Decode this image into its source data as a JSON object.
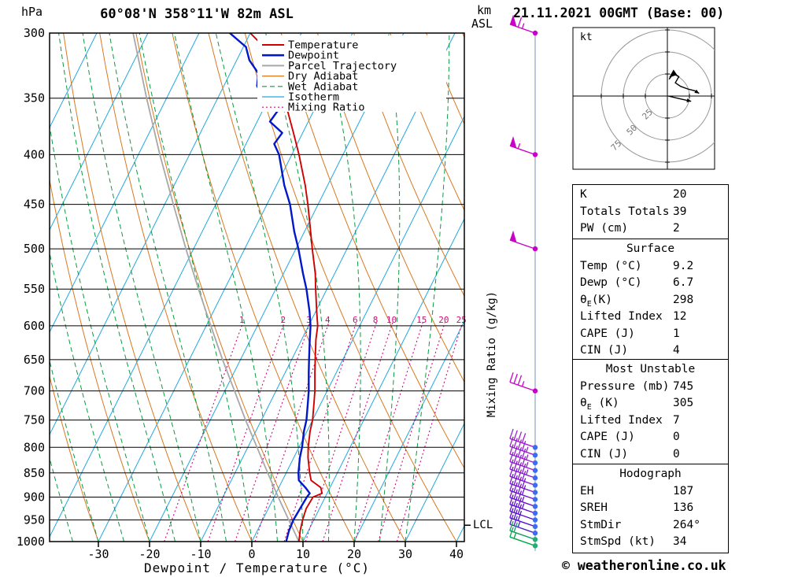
{
  "header": {
    "title": "60°08'N 358°11'W 82m ASL",
    "datetime": "21.11.2021 00GMT (Base: 00)"
  },
  "axes": {
    "pressure_unit": "hPa",
    "km_asl": [
      "km",
      "ASL"
    ],
    "x_title": "Dewpoint / Temperature (°C)",
    "mixing_ratio_label": "Mixing Ratio (g/kg)",
    "pressure_ticks": [
      300,
      350,
      400,
      450,
      500,
      550,
      600,
      650,
      700,
      750,
      800,
      850,
      900,
      950,
      1000
    ],
    "temp_ticks": [
      -30,
      -20,
      -10,
      0,
      10,
      20,
      30,
      40
    ]
  },
  "legend": {
    "items": [
      {
        "label": "Temperature",
        "color": "#d00000",
        "style": "solid",
        "width": 2
      },
      {
        "label": "Dewpoint",
        "color": "#0018c8",
        "style": "solid",
        "width": 2.6
      },
      {
        "label": "Parcel Trajectory",
        "color": "#a8a8a8",
        "style": "solid",
        "width": 2
      },
      {
        "label": "Dry Adiabat",
        "color": "#d97820",
        "style": "solid",
        "width": 1.2
      },
      {
        "label": "Wet Adiabat",
        "color": "#0a9a40",
        "style": "dashed",
        "width": 1.2
      },
      {
        "label": "Isotherm",
        "color": "#22a8e0",
        "style": "solid",
        "width": 1.2
      },
      {
        "label": "Mixing Ratio",
        "color": "#cf0a78",
        "style": "dotted",
        "width": 1.2
      }
    ]
  },
  "chart_data": {
    "sounding": {
      "type": "skewt_log_p",
      "pressure_axis_hpa": [
        300,
        1000
      ],
      "temp_axis_c": [
        -40,
        40
      ],
      "lcl_label": "LCL",
      "lcl_pressure_hpa": 962,
      "mixing_ratio_lines": [
        1,
        2,
        3,
        4,
        6,
        8,
        10,
        15,
        20,
        25
      ],
      "temperature_profile": [
        [
          1000,
          9.2
        ],
        [
          975,
          8.4
        ],
        [
          950,
          7.8
        ],
        [
          925,
          7.4
        ],
        [
          900,
          7.6
        ],
        [
          892,
          9.0
        ],
        [
          880,
          8.2
        ],
        [
          865,
          5.6
        ],
        [
          850,
          4.6
        ],
        [
          820,
          2.8
        ],
        [
          800,
          1.8
        ],
        [
          770,
          0.6
        ],
        [
          750,
          0.0
        ],
        [
          720,
          -1.4
        ],
        [
          700,
          -2.4
        ],
        [
          670,
          -4.2
        ],
        [
          650,
          -5.4
        ],
        [
          620,
          -7.2
        ],
        [
          600,
          -8.2
        ],
        [
          580,
          -9.8
        ],
        [
          550,
          -12.2
        ],
        [
          530,
          -13.8
        ],
        [
          500,
          -16.8
        ],
        [
          480,
          -18.8
        ],
        [
          450,
          -22.0
        ],
        [
          430,
          -24.4
        ],
        [
          400,
          -28.6
        ],
        [
          380,
          -31.8
        ],
        [
          350,
          -37.0
        ],
        [
          330,
          -40.6
        ],
        [
          315,
          -44.0
        ],
        [
          300,
          -50.0
        ]
      ],
      "dewpoint_profile": [
        [
          1000,
          6.7
        ],
        [
          975,
          6.2
        ],
        [
          950,
          6.0
        ],
        [
          925,
          6.2
        ],
        [
          900,
          6.4
        ],
        [
          892,
          6.6
        ],
        [
          880,
          5.2
        ],
        [
          865,
          3.2
        ],
        [
          850,
          2.4
        ],
        [
          820,
          1.2
        ],
        [
          800,
          0.6
        ],
        [
          770,
          -0.6
        ],
        [
          750,
          -1.2
        ],
        [
          720,
          -2.6
        ],
        [
          700,
          -3.6
        ],
        [
          670,
          -5.4
        ],
        [
          650,
          -6.6
        ],
        [
          620,
          -8.4
        ],
        [
          600,
          -9.6
        ],
        [
          580,
          -11.2
        ],
        [
          550,
          -14.0
        ],
        [
          530,
          -16.2
        ],
        [
          500,
          -19.5
        ],
        [
          480,
          -22.0
        ],
        [
          450,
          -25.5
        ],
        [
          430,
          -28.5
        ],
        [
          400,
          -32.5
        ],
        [
          390,
          -34.5
        ],
        [
          380,
          -34.0
        ],
        [
          370,
          -37.5
        ],
        [
          360,
          -37.0
        ],
        [
          350,
          -41.0
        ],
        [
          340,
          -43.5
        ],
        [
          330,
          -44.5
        ],
        [
          320,
          -47.5
        ],
        [
          310,
          -49.5
        ],
        [
          300,
          -54.0
        ]
      ],
      "parcel_profile": [
        [
          1000,
          9.2
        ],
        [
          950,
          5.1
        ],
        [
          900,
          0.8
        ],
        [
          850,
          -3.6
        ],
        [
          800,
          -8.2
        ],
        [
          750,
          -13.1
        ],
        [
          700,
          -18.1
        ],
        [
          650,
          -23.5
        ],
        [
          600,
          -29.1
        ],
        [
          550,
          -35.1
        ],
        [
          500,
          -41.5
        ],
        [
          450,
          -48.3
        ],
        [
          400,
          -55.8
        ],
        [
          350,
          -63.9
        ],
        [
          300,
          -72.9
        ]
      ],
      "winds": [
        {
          "p": 300,
          "spd": 65,
          "color": "#c800c8",
          "dot": "#c800c8"
        },
        {
          "p": 400,
          "spd": 55,
          "color": "#c800c8",
          "dot": "#c800c8"
        },
        {
          "p": 500,
          "spd": 50,
          "color": "#c800c8",
          "dot": "#c800c8"
        },
        {
          "p": 700,
          "spd": 35,
          "color": "#c800c8",
          "dot": "#c800c8"
        },
        {
          "p": 800,
          "spd": 40,
          "color": "#a020d0",
          "dot": "#3d6cf0"
        },
        {
          "p": 815,
          "spd": 45,
          "color": "#9a1ed0",
          "dot": "#3d6cf0"
        },
        {
          "p": 830,
          "spd": 45,
          "color": "#941cd0",
          "dot": "#3d6cf0"
        },
        {
          "p": 845,
          "spd": 45,
          "color": "#8e1ad0",
          "dot": "#3d6cf0"
        },
        {
          "p": 860,
          "spd": 45,
          "color": "#8818d0",
          "dot": "#3d6cf0"
        },
        {
          "p": 875,
          "spd": 40,
          "color": "#8216d0",
          "dot": "#3d6cf0"
        },
        {
          "p": 890,
          "spd": 40,
          "color": "#7a14d0",
          "dot": "#3d6cf0"
        },
        {
          "p": 905,
          "spd": 40,
          "color": "#7212d0",
          "dot": "#3d6cf0"
        },
        {
          "p": 920,
          "spd": 35,
          "color": "#6a10d0",
          "dot": "#3d6cf0"
        },
        {
          "p": 935,
          "spd": 35,
          "color": "#620ed0",
          "dot": "#3d6cf0"
        },
        {
          "p": 950,
          "spd": 30,
          "color": "#5a0cd0",
          "dot": "#3d6cf0"
        },
        {
          "p": 965,
          "spd": 30,
          "color": "#520ad0",
          "dot": "#3d6cf0"
        },
        {
          "p": 980,
          "spd": 25,
          "color": "#4a22c0",
          "dot": "#3d6cf0"
        },
        {
          "p": 995,
          "spd": 20,
          "color": "#11a060",
          "dot": "#20b070"
        },
        {
          "p": 1010,
          "spd": 15,
          "color": "#00a84a",
          "dot": "#20b070"
        }
      ]
    },
    "hodograph": {
      "unit_label": "kt",
      "ring_labels": [
        25,
        50,
        75
      ],
      "trace_kt": [
        [
          2,
          19
        ],
        [
          7,
          26
        ],
        [
          13,
          22
        ],
        [
          9,
          15
        ],
        [
          15,
          11
        ],
        [
          23,
          8
        ],
        [
          31,
          6
        ],
        [
          36,
          3
        ]
      ],
      "storm_motion_kt": [
        [
          1,
          0
        ],
        [
          14,
          -3
        ],
        [
          27,
          -6
        ]
      ],
      "marker_kt": [
        [
          2,
          21
        ],
        [
          7,
          30
        ],
        [
          11,
          24
        ]
      ]
    }
  },
  "table": {
    "sections": [
      {
        "rows": [
          {
            "label": "K",
            "value": "20"
          },
          {
            "label": "Totals Totals",
            "value": "39"
          },
          {
            "label": "PW (cm)",
            "value": "2"
          }
        ]
      },
      {
        "header": "Surface",
        "rows": [
          {
            "label": "Temp (°C)",
            "value": "9.2"
          },
          {
            "label": "Dewp (°C)",
            "value": "6.7"
          },
          {
            "label": "θ",
            "sub": "E",
            "suffix": "(K)",
            "value": "298"
          },
          {
            "label": "Lifted Index",
            "value": "12"
          },
          {
            "label": "CAPE (J)",
            "value": "1"
          },
          {
            "label": "CIN (J)",
            "value": "4"
          }
        ]
      },
      {
        "header": "Most Unstable",
        "rows": [
          {
            "label": "Pressure (mb)",
            "value": "745"
          },
          {
            "label": "θ",
            "sub": "E",
            "suffix": " (K)",
            "value": "305"
          },
          {
            "label": "Lifted Index",
            "value": "7"
          },
          {
            "label": "CAPE (J)",
            "value": "0"
          },
          {
            "label": "CIN (J)",
            "value": "0"
          }
        ]
      },
      {
        "header": "Hodograph",
        "rows": [
          {
            "label": "EH",
            "value": "187"
          },
          {
            "label": "SREH",
            "value": "136"
          },
          {
            "label": "StmDir",
            "value": "264°"
          },
          {
            "label": "StmSpd (kt)",
            "value": "34"
          }
        ]
      }
    ]
  },
  "footer": {
    "copyright": "© weatheronline.co.uk"
  }
}
